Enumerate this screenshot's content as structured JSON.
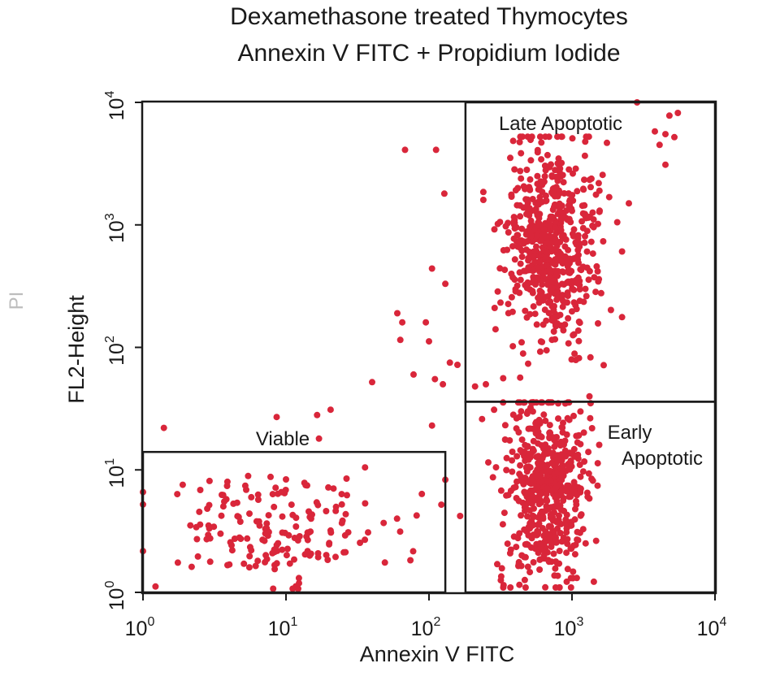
{
  "chart_data": {
    "type": "scatter",
    "title": "Dexamethasone treated Thymocytes",
    "subtitle": "Annexin V FITC + Propidium Iodide",
    "xlabel": "Annexin V FITC",
    "ylabel": "FL2-Height",
    "side_label": "PI",
    "x_scale": "log",
    "y_scale": "log",
    "xlim": [
      1,
      10000
    ],
    "ylim": [
      1,
      10000
    ],
    "x_ticks": [
      {
        "base": "10",
        "exp": "0",
        "value": 1
      },
      {
        "base": "10",
        "exp": "1",
        "value": 10
      },
      {
        "base": "10",
        "exp": "2",
        "value": 100
      },
      {
        "base": "10",
        "exp": "3",
        "value": 1000
      },
      {
        "base": "10",
        "exp": "4",
        "value": 10000
      }
    ],
    "y_ticks": [
      {
        "base": "10",
        "exp": "0",
        "value": 1
      },
      {
        "base": "10",
        "exp": "1",
        "value": 10
      },
      {
        "base": "10",
        "exp": "2",
        "value": 100
      },
      {
        "base": "10",
        "exp": "3",
        "value": 1000
      },
      {
        "base": "10",
        "exp": "4",
        "value": 10000
      }
    ],
    "grid": false,
    "point_color": "#d9263a",
    "gates": [
      {
        "label_lines": [
          "Viable"
        ],
        "x_range": [
          1,
          130
        ],
        "y_range": [
          1,
          14
        ]
      },
      {
        "label_lines": [
          "Late Apoptotic"
        ],
        "x_range": [
          180,
          10000
        ],
        "y_range": [
          36,
          10000
        ]
      },
      {
        "label_lines": [
          "Early",
          "Apoptotic"
        ],
        "x_range": [
          180,
          10000
        ],
        "y_range": [
          1,
          36
        ]
      }
    ],
    "clusters": [
      {
        "population": "Viable",
        "n": 175,
        "x_log_mean": 0.9,
        "x_log_sd": 0.42,
        "y_log_mean": 0.52,
        "y_log_sd": 0.22,
        "x_log_range": [
          0.0,
          1.95
        ],
        "y_log_range": [
          0.03,
          1.02
        ]
      },
      {
        "population": "Early Apoptotic",
        "n": 560,
        "x_log_mean": 2.82,
        "x_log_sd": 0.14,
        "y_log_mean": 0.85,
        "y_log_sd": 0.38,
        "x_log_range": [
          2.45,
          3.18
        ],
        "y_log_range": [
          0.04,
          1.55
        ]
      },
      {
        "population": "Late Apoptotic",
        "n": 600,
        "x_log_mean": 2.85,
        "x_log_sd": 0.16,
        "y_log_mean": 2.82,
        "y_log_sd": 0.42,
        "x_log_range": [
          2.38,
          3.35
        ],
        "y_log_range": [
          1.6,
          3.72
        ]
      }
    ],
    "points": [
      [
        1.4,
        22
      ],
      [
        8.6,
        27
      ],
      [
        16.5,
        28
      ],
      [
        20.5,
        31
      ],
      [
        17,
        18
      ],
      [
        40,
        52
      ],
      [
        60,
        190
      ],
      [
        65,
        160
      ],
      [
        63,
        115
      ],
      [
        78,
        60
      ],
      [
        95,
        160
      ],
      [
        100,
        112
      ],
      [
        105,
        440
      ],
      [
        105,
        23
      ],
      [
        110,
        55
      ],
      [
        125,
        50
      ],
      [
        130,
        330
      ],
      [
        140,
        75
      ],
      [
        158,
        72
      ],
      [
        130,
        8.3
      ],
      [
        122,
        5.2
      ],
      [
        165,
        4.2
      ],
      [
        68,
        4100
      ],
      [
        112,
        4100
      ],
      [
        128,
        1800
      ],
      [
        2850,
        10000
      ],
      [
        5500,
        8200
      ],
      [
        4800,
        7800
      ],
      [
        5200,
        5200
      ],
      [
        4500,
        5500
      ],
      [
        3800,
        5800
      ],
      [
        4100,
        4500
      ],
      [
        4500,
        3100
      ],
      [
        2500,
        1500
      ],
      [
        1000,
        1300
      ],
      [
        235,
        26
      ],
      [
        250,
        50
      ],
      [
        210,
        48
      ],
      [
        330,
        56
      ],
      [
        240,
        1600
      ],
      [
        1350,
        35
      ],
      [
        1550,
        16
      ],
      [
        1300,
        14
      ],
      [
        1200,
        9.7
      ],
      [
        1280,
        6.5
      ],
      [
        280,
        8.7
      ],
      [
        260,
        11.5
      ],
      [
        300,
        1.7
      ],
      [
        320,
        1.35
      ],
      [
        650,
        1.1
      ]
    ]
  }
}
